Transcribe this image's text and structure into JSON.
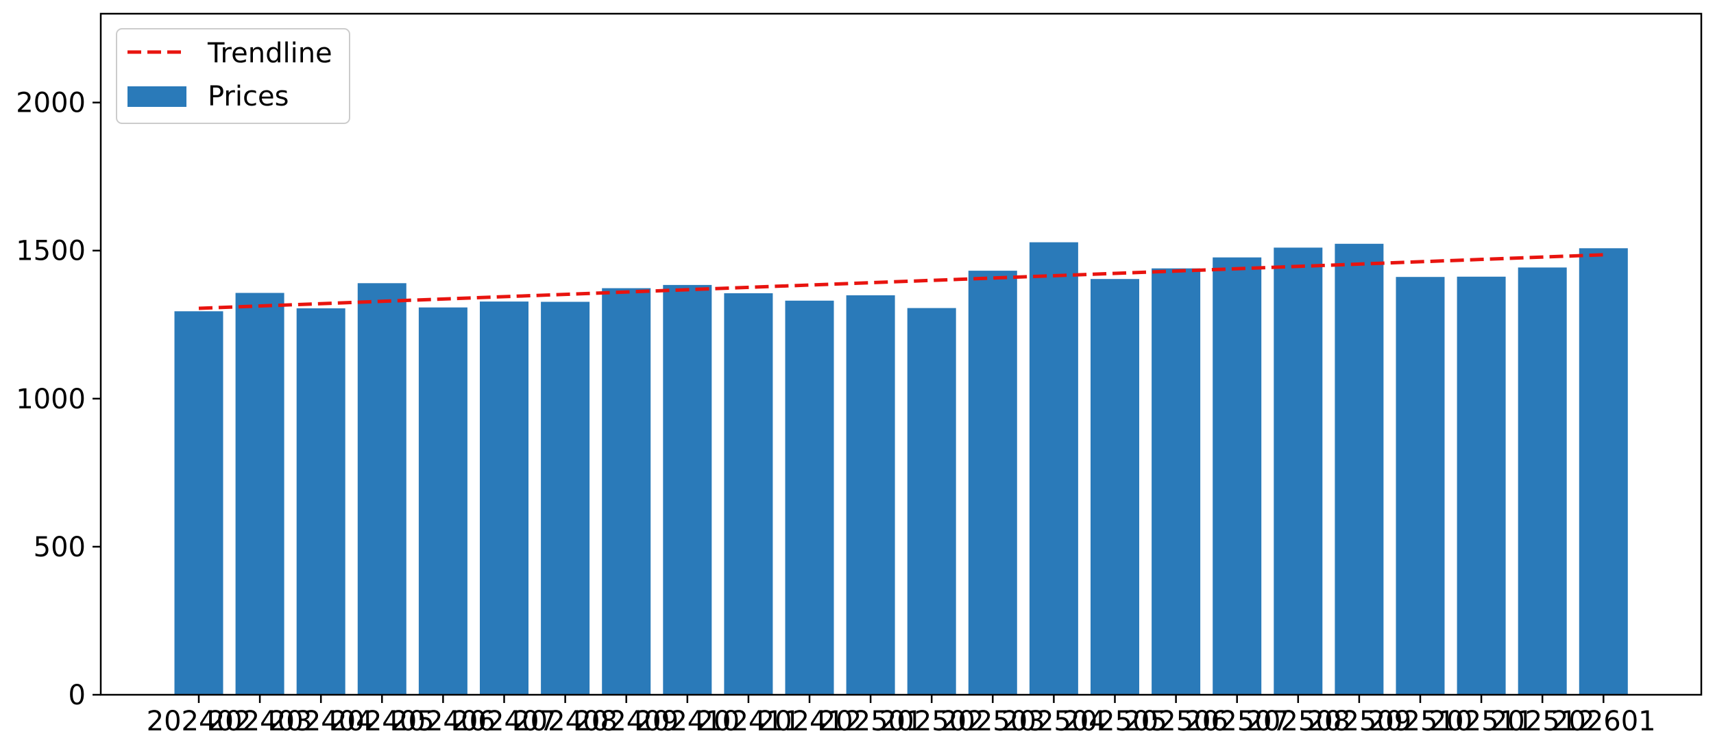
{
  "chart_data": {
    "type": "bar",
    "title": "",
    "xlabel": "",
    "ylabel": "",
    "categories": [
      "202402",
      "202403",
      "202404",
      "202405",
      "202406",
      "202407",
      "202408",
      "202409",
      "202410",
      "202411",
      "202412",
      "202501",
      "202502",
      "202503",
      "202504",
      "202505",
      "202506",
      "202507",
      "202508",
      "202509",
      "202510",
      "202511",
      "202512",
      "202601"
    ],
    "series": [
      {
        "name": "Prices",
        "color": "#2a7ab9",
        "values": [
          1295,
          1357,
          1305,
          1390,
          1308,
          1328,
          1327,
          1373,
          1384,
          1356,
          1331,
          1349,
          1306,
          1432,
          1528,
          1404,
          1440,
          1477,
          1510,
          1523,
          1411,
          1412,
          1443,
          1508
        ]
      }
    ],
    "trendline": {
      "name": "Trendline",
      "color": "#e8140f",
      "style": "dashed",
      "start": 1305,
      "end": 1486
    },
    "ylim": [
      0,
      2300
    ],
    "yticks": [
      0,
      500,
      1000,
      1500,
      2000
    ],
    "grid": false,
    "legend": "top-left"
  }
}
